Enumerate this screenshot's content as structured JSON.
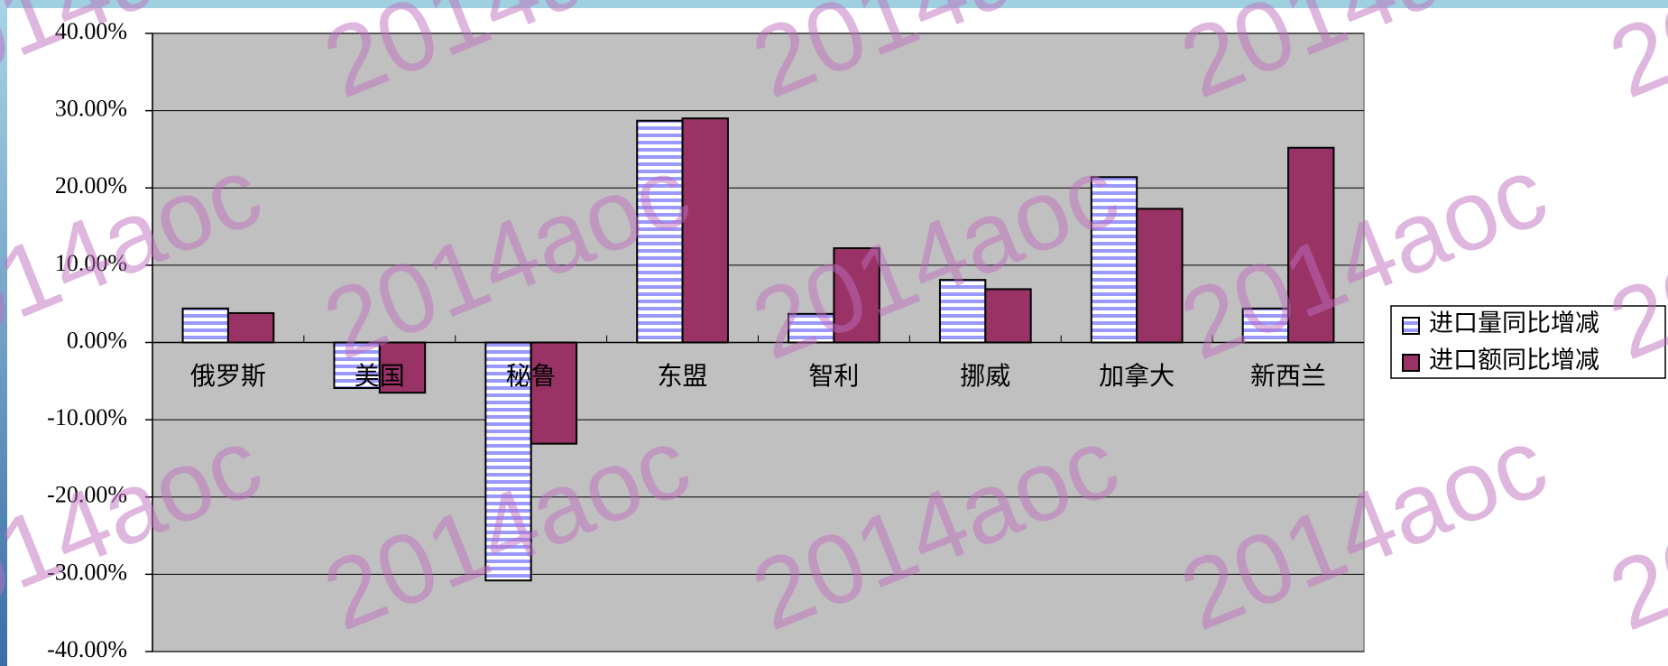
{
  "chart_data": {
    "type": "bar",
    "categories": [
      "俄罗斯",
      "美国",
      "秘鲁",
      "东盟",
      "智利",
      "挪威",
      "加拿大",
      "新西兰"
    ],
    "series": [
      {
        "name": "进口量同比增减",
        "color": "#9999ff",
        "values": [
          4.4,
          -5.9,
          -30.8,
          28.7,
          3.7,
          8.1,
          21.4,
          4.4
        ]
      },
      {
        "name": "进口额同比增减",
        "color": "#993366",
        "values": [
          3.8,
          -6.5,
          -13.1,
          29.0,
          12.2,
          6.9,
          17.3,
          25.2
        ]
      }
    ],
    "ylim": [
      -40,
      40
    ],
    "yticks": [
      {
        "value": -40,
        "label": "-40.00%"
      },
      {
        "value": -30,
        "label": "-30.00%"
      },
      {
        "value": -20,
        "label": "-20.00%"
      },
      {
        "value": -10,
        "label": "-10.00%"
      },
      {
        "value": 0,
        "label": "0.00%"
      },
      {
        "value": 10,
        "label": "10.00%"
      },
      {
        "value": 20,
        "label": "20.00%"
      },
      {
        "value": 30,
        "label": "30.00%"
      },
      {
        "value": 40,
        "label": "40.00%"
      }
    ],
    "grid": true,
    "legend": "right",
    "watermark": "2014aoc"
  }
}
